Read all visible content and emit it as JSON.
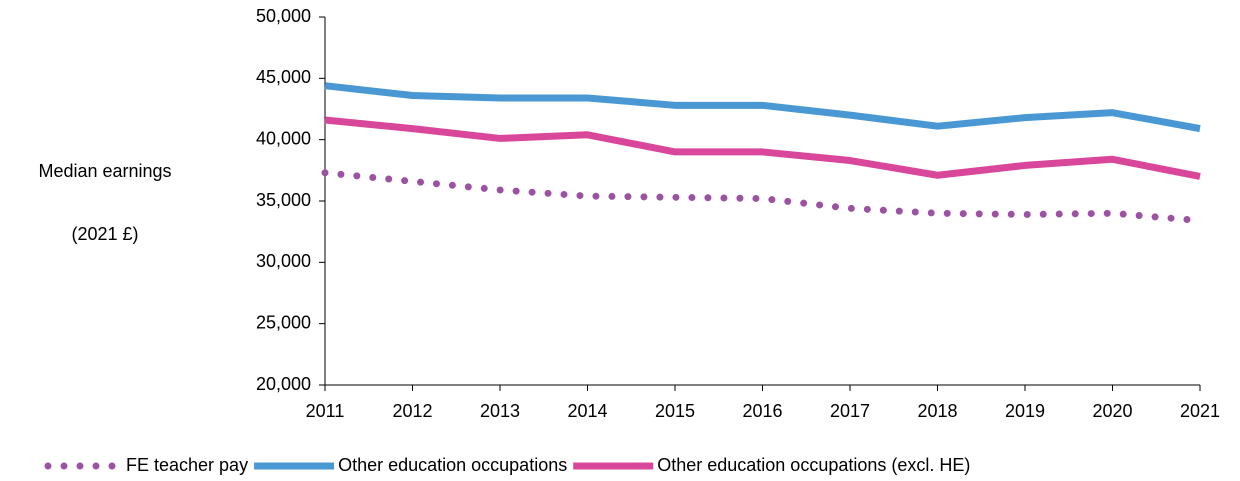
{
  "chart_data": {
    "type": "line",
    "ylabel": [
      "Median earnings",
      "(2021 £)"
    ],
    "x": [
      2011,
      2012,
      2013,
      2014,
      2015,
      2016,
      2017,
      2018,
      2019,
      2020,
      2021
    ],
    "xlim": [
      2011,
      2021
    ],
    "xticks": [
      2011,
      2012,
      2013,
      2014,
      2015,
      2016,
      2017,
      2018,
      2019,
      2020,
      2021
    ],
    "ylim": [
      20000,
      50000
    ],
    "yticks": [
      {
        "value": 20000,
        "label": "20,000"
      },
      {
        "value": 25000,
        "label": "25,000"
      },
      {
        "value": 30000,
        "label": "30,000"
      },
      {
        "value": 35000,
        "label": "35,000"
      },
      {
        "value": 40000,
        "label": "40,000"
      },
      {
        "value": 45000,
        "label": "45,000"
      },
      {
        "value": 50000,
        "label": "50,000"
      }
    ],
    "grid": false,
    "legend": "bottom",
    "series": [
      {
        "name": "FE teacher pay",
        "color": "#9c52a3",
        "style": "dotted",
        "values": [
          37300,
          36600,
          35900,
          35400,
          35300,
          35200,
          34400,
          34000,
          33900,
          34000,
          33400
        ]
      },
      {
        "name": "Other education occupations",
        "color": "#4a98d3",
        "style": "solid",
        "values": [
          44400,
          43600,
          43400,
          43400,
          42800,
          42800,
          42000,
          41100,
          41800,
          42200,
          40900
        ]
      },
      {
        "name": "Other education occupations (excl. HE)",
        "color": "#d9479a",
        "style": "solid",
        "values": [
          41600,
          40900,
          40100,
          40400,
          39000,
          39000,
          38300,
          37100,
          37900,
          38400,
          37000
        ]
      }
    ]
  }
}
